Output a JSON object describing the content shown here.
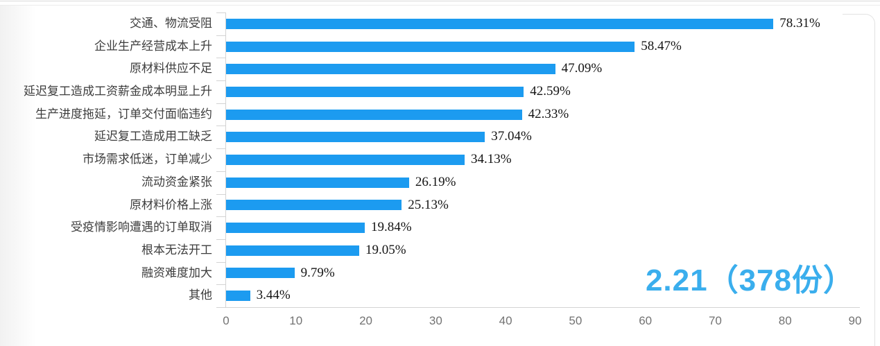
{
  "chart_data": {
    "type": "bar",
    "orientation": "horizontal",
    "title": "",
    "xlabel": "",
    "ylabel": "",
    "categories": [
      "交通、物流受阻",
      "企业生产经营成本上升",
      "原材料供应不足",
      "延迟复工造成工资薪金成本明显上升",
      "生产进度拖延，订单交付面临违约",
      "延迟复工造成用工缺乏",
      "市场需求低迷，订单减少",
      "流动资金紧张",
      "原材料价格上涨",
      "受疫情影响遭遇的订单取消",
      "根本无法开工",
      "融资难度加大",
      "其他"
    ],
    "values": [
      78.31,
      58.47,
      47.09,
      42.59,
      42.33,
      37.04,
      34.13,
      26.19,
      25.13,
      19.84,
      19.05,
      9.79,
      3.44
    ],
    "value_labels": [
      "78.31%",
      "58.47%",
      "47.09%",
      "42.59%",
      "42.33%",
      "37.04%",
      "34.13%",
      "26.19%",
      "25.13%",
      "19.84%",
      "19.05%",
      "9.79%",
      "3.44%"
    ],
    "x_ticks": [
      0,
      10,
      20,
      30,
      40,
      50,
      60,
      70,
      80,
      90
    ],
    "xlim": [
      0,
      90
    ],
    "grid": "off",
    "legend": "none",
    "bar_color": "#1c9bf0",
    "annotation": {
      "text": "2.21（378份）",
      "color": "#3aaeed"
    }
  }
}
